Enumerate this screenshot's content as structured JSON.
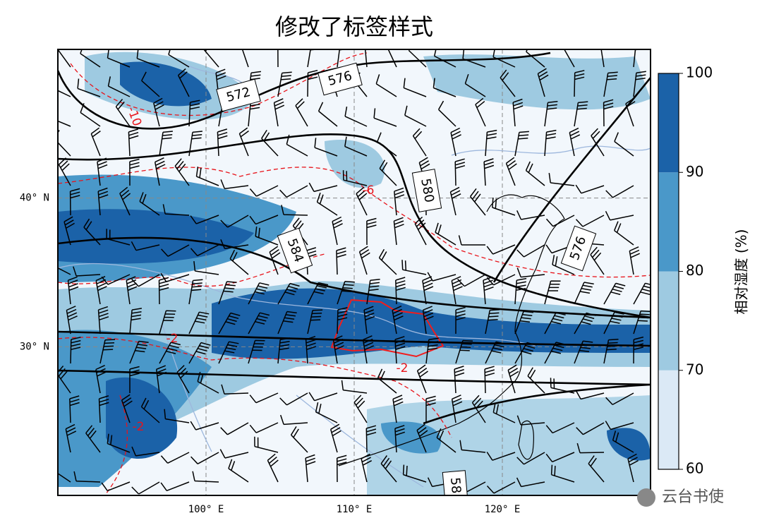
{
  "title": "修改了标签样式",
  "map": {
    "xlim": [
      90,
      130
    ],
    "ylim": [
      20,
      50
    ],
    "xticks": [
      {
        "value": 100,
        "label": "100° E"
      },
      {
        "value": 110,
        "label": "110° E"
      },
      {
        "value": 120,
        "label": "120° E"
      }
    ],
    "yticks": [
      {
        "value": 40,
        "label": "40° N"
      },
      {
        "value": 30,
        "label": "30° N"
      }
    ],
    "height_labels": [
      "572",
      "576",
      "580",
      "584",
      "576",
      "58"
    ],
    "temperature_labels": [
      "-10",
      "-6",
      "-2",
      "-2",
      "-2"
    ]
  },
  "colorbar": {
    "label": "相对湿度 (%)",
    "lim": [
      60,
      100
    ],
    "ticks": [
      60,
      70,
      80,
      90,
      100
    ],
    "colors": [
      "#dbe9f6",
      "#9ecae1",
      "#4a98c9",
      "#1b62a8"
    ]
  },
  "watermark": "云台书使"
}
